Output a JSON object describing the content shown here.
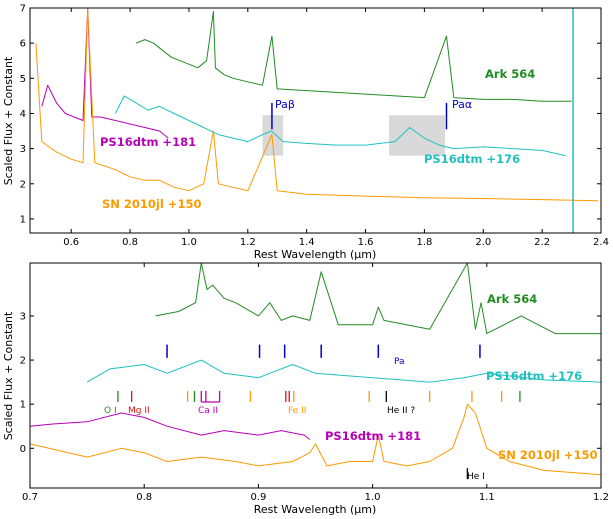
{
  "chart_data": [
    {
      "type": "line",
      "panel": "top",
      "xlabel": "Rest Wavelength (μm)",
      "ylabel": "Scaled Flux + Constant",
      "xlim": [
        0.46,
        2.4
      ],
      "ylim": [
        0.6,
        7.0
      ],
      "xticks": [
        "0.6",
        "0.8",
        "1.0",
        "1.2",
        "1.4",
        "1.6",
        "1.8",
        "2.0",
        "2.2",
        "2.4"
      ],
      "yticks": [
        "1",
        "2",
        "3",
        "4",
        "5",
        "6",
        "7"
      ],
      "series": [
        {
          "name": "Ark 564",
          "color": "#228B22",
          "x": [
            0.82,
            0.85,
            0.88,
            0.91,
            0.94,
            0.97,
            1.0,
            1.03,
            1.06,
            1.083,
            1.09,
            1.12,
            1.15,
            1.2,
            1.25,
            1.282,
            1.3,
            1.4,
            1.5,
            1.6,
            1.7,
            1.8,
            1.875,
            1.9,
            2.0,
            2.1,
            2.2,
            2.3
          ],
          "y": [
            6.0,
            6.1,
            6.0,
            5.8,
            5.6,
            5.5,
            5.4,
            5.3,
            5.5,
            6.9,
            5.3,
            5.1,
            5.0,
            4.9,
            4.8,
            6.2,
            4.7,
            4.65,
            4.6,
            4.55,
            4.5,
            4.45,
            6.2,
            4.45,
            4.4,
            4.4,
            4.35,
            4.35
          ]
        },
        {
          "name": "PS16dtm +176",
          "color": "#20C0C0",
          "x": [
            0.75,
            0.78,
            0.82,
            0.86,
            0.9,
            0.95,
            1.0,
            1.05,
            1.1,
            1.15,
            1.2,
            1.25,
            1.28,
            1.32,
            1.4,
            1.5,
            1.6,
            1.7,
            1.75,
            1.8,
            1.85,
            1.9,
            2.0,
            2.1,
            2.2,
            2.28
          ],
          "y": [
            4.0,
            4.5,
            4.3,
            4.1,
            4.2,
            4.0,
            3.8,
            3.6,
            3.4,
            3.3,
            3.2,
            3.4,
            3.5,
            3.2,
            3.15,
            3.1,
            3.1,
            3.2,
            3.6,
            3.3,
            3.1,
            3.0,
            3.05,
            3.0,
            2.95,
            2.8
          ]
        },
        {
          "name": "PS16dtm +181",
          "color": "#B800B8",
          "x": [
            0.5,
            0.52,
            0.55,
            0.58,
            0.61,
            0.64,
            0.656,
            0.67,
            0.7,
            0.75,
            0.8,
            0.85,
            0.9,
            0.93
          ],
          "y": [
            4.2,
            4.8,
            4.3,
            4.0,
            3.9,
            3.8,
            7.0,
            3.9,
            3.9,
            3.8,
            3.7,
            3.6,
            3.5,
            3.3
          ]
        },
        {
          "name": "SN 2010jl +150",
          "color": "#FF9900",
          "x": [
            0.48,
            0.5,
            0.55,
            0.6,
            0.64,
            0.656,
            0.68,
            0.75,
            0.8,
            0.85,
            0.9,
            0.95,
            1.0,
            1.05,
            1.083,
            1.1,
            1.2,
            1.282,
            1.3,
            1.4,
            1.6,
            1.8,
            2.0,
            2.2,
            2.39
          ],
          "y": [
            6.0,
            3.2,
            2.9,
            2.7,
            2.6,
            7.0,
            2.6,
            2.4,
            2.2,
            2.1,
            2.1,
            1.9,
            1.8,
            2.0,
            3.5,
            2.0,
            1.8,
            3.4,
            1.8,
            1.7,
            1.65,
            1.6,
            1.58,
            1.55,
            1.52
          ]
        }
      ],
      "annotations": [
        {
          "text": "Ark 564",
          "color": "#228B22"
        },
        {
          "text": "Paβ",
          "color": "#0000CC"
        },
        {
          "text": "Paα",
          "color": "#0000CC"
        },
        {
          "text": "PS16dtm +181",
          "color": "#B800B8"
        },
        {
          "text": "PS16dtm +176",
          "color": "#20C0C0"
        },
        {
          "text": "SN 2010jl +150",
          "color": "#FF9900"
        }
      ],
      "marker_lines": [
        1.282,
        1.875
      ],
      "shaded_regions": [
        [
          1.25,
          1.32
        ],
        [
          1.68,
          1.87
        ]
      ],
      "vertical_spike_x": 2.305
    },
    {
      "type": "line",
      "panel": "bottom",
      "xlabel": "Rest Wavelength (μm)",
      "ylabel": "Scaled Flux + Constant",
      "xlim": [
        0.7,
        1.2
      ],
      "ylim": [
        -0.9,
        4.2
      ],
      "xticks": [
        "0.7",
        "0.8",
        "0.9",
        "1.0",
        "1.1",
        "1.2"
      ],
      "yticks": [
        "0",
        "1",
        "2",
        "3"
      ],
      "series": [
        {
          "name": "Ark 564",
          "color": "#228B22",
          "x": [
            0.81,
            0.83,
            0.845,
            0.85,
            0.855,
            0.86,
            0.87,
            0.88,
            0.9,
            0.91,
            0.92,
            0.93,
            0.945,
            0.955,
            0.97,
            1.0,
            1.005,
            1.01,
            1.05,
            1.083,
            1.09,
            1.095,
            1.1,
            1.13,
            1.16,
            1.2
          ],
          "y": [
            3.0,
            3.1,
            3.3,
            4.2,
            3.6,
            3.7,
            3.4,
            3.3,
            3.0,
            3.3,
            2.9,
            3.0,
            2.9,
            4.0,
            2.8,
            2.8,
            3.2,
            2.9,
            2.7,
            4.3,
            2.7,
            3.3,
            2.6,
            3.0,
            2.6,
            2.6
          ]
        },
        {
          "name": "PS16dtm +176",
          "color": "#20C0C0",
          "x": [
            0.75,
            0.77,
            0.8,
            0.82,
            0.85,
            0.87,
            0.9,
            0.93,
            0.95,
            1.0,
            1.05,
            1.08,
            1.1,
            1.15,
            1.2
          ],
          "y": [
            1.5,
            1.8,
            1.9,
            1.7,
            2.0,
            1.7,
            1.6,
            1.9,
            1.7,
            1.6,
            1.5,
            1.6,
            1.7,
            1.55,
            1.5
          ]
        },
        {
          "name": "PS16dtm +181",
          "color": "#B800B8",
          "x": [
            0.7,
            0.72,
            0.75,
            0.78,
            0.8,
            0.82,
            0.85,
            0.87,
            0.9,
            0.92,
            0.94,
            0.945
          ],
          "y": [
            0.5,
            0.55,
            0.6,
            0.8,
            0.7,
            0.5,
            0.3,
            0.4,
            0.3,
            0.4,
            0.3,
            0.2
          ]
        },
        {
          "name": "SN 2010jl +150",
          "color": "#FF9900",
          "x": [
            0.7,
            0.75,
            0.78,
            0.8,
            0.82,
            0.85,
            0.88,
            0.9,
            0.93,
            0.945,
            0.95,
            0.96,
            0.98,
            1.0,
            1.005,
            1.01,
            1.03,
            1.05,
            1.07,
            1.08,
            1.083,
            1.09,
            1.1,
            1.12,
            1.15,
            1.2
          ],
          "y": [
            0.1,
            -0.2,
            0.0,
            -0.1,
            -0.3,
            -0.2,
            -0.3,
            -0.4,
            -0.3,
            -0.1,
            0.1,
            -0.4,
            -0.3,
            -0.3,
            0.3,
            -0.3,
            -0.4,
            -0.3,
            0.0,
            0.7,
            1.0,
            0.8,
            0.0,
            -0.3,
            -0.5,
            -0.6
          ]
        }
      ],
      "annotations": [
        {
          "text": "Ark 564",
          "color": "#228B22"
        },
        {
          "text": "Pa",
          "color": "#0000CC"
        },
        {
          "text": "PS16dtm +176",
          "color": "#20C0C0"
        },
        {
          "text": "O I",
          "color": "#228B22"
        },
        {
          "text": "Mg II",
          "color": "#DD1111"
        },
        {
          "text": "Ca II",
          "color": "#B800B8"
        },
        {
          "text": "Fe II",
          "color": "#FF9900"
        },
        {
          "text": "He II ?",
          "color": "#000000"
        },
        {
          "text": "PS16dtm +181",
          "color": "#B800B8"
        },
        {
          "text": "SN 2010jl +150",
          "color": "#FF9900"
        },
        {
          "text": "He I",
          "color": "#000000"
        }
      ],
      "pa_markers": [
        0.82,
        0.901,
        0.923,
        0.955,
        1.005,
        1.094
      ],
      "line_markers": [
        {
          "x": 0.777,
          "color": "#228B22"
        },
        {
          "x": 0.844,
          "color": "#228B22"
        },
        {
          "x": 1.129,
          "color": "#228B22"
        },
        {
          "x": 0.789,
          "color": "#DD1111"
        },
        {
          "x": 0.924,
          "color": "#DD1111"
        },
        {
          "x": 0.927,
          "color": "#DD1111"
        },
        {
          "x": 0.85,
          "color": "#B800B8"
        },
        {
          "x": 0.854,
          "color": "#B800B8"
        },
        {
          "x": 0.866,
          "color": "#B800B8"
        },
        {
          "x": 0.838,
          "color": "#FF9900"
        },
        {
          "x": 0.893,
          "color": "#FF9900"
        },
        {
          "x": 0.931,
          "color": "#FF9900"
        },
        {
          "x": 0.997,
          "color": "#FF9900"
        },
        {
          "x": 1.05,
          "color": "#FF9900"
        },
        {
          "x": 1.087,
          "color": "#FF9900"
        },
        {
          "x": 1.113,
          "color": "#FF9900"
        },
        {
          "x": 1.012,
          "color": "#000000"
        }
      ],
      "hei_marker_x": 1.083
    }
  ]
}
